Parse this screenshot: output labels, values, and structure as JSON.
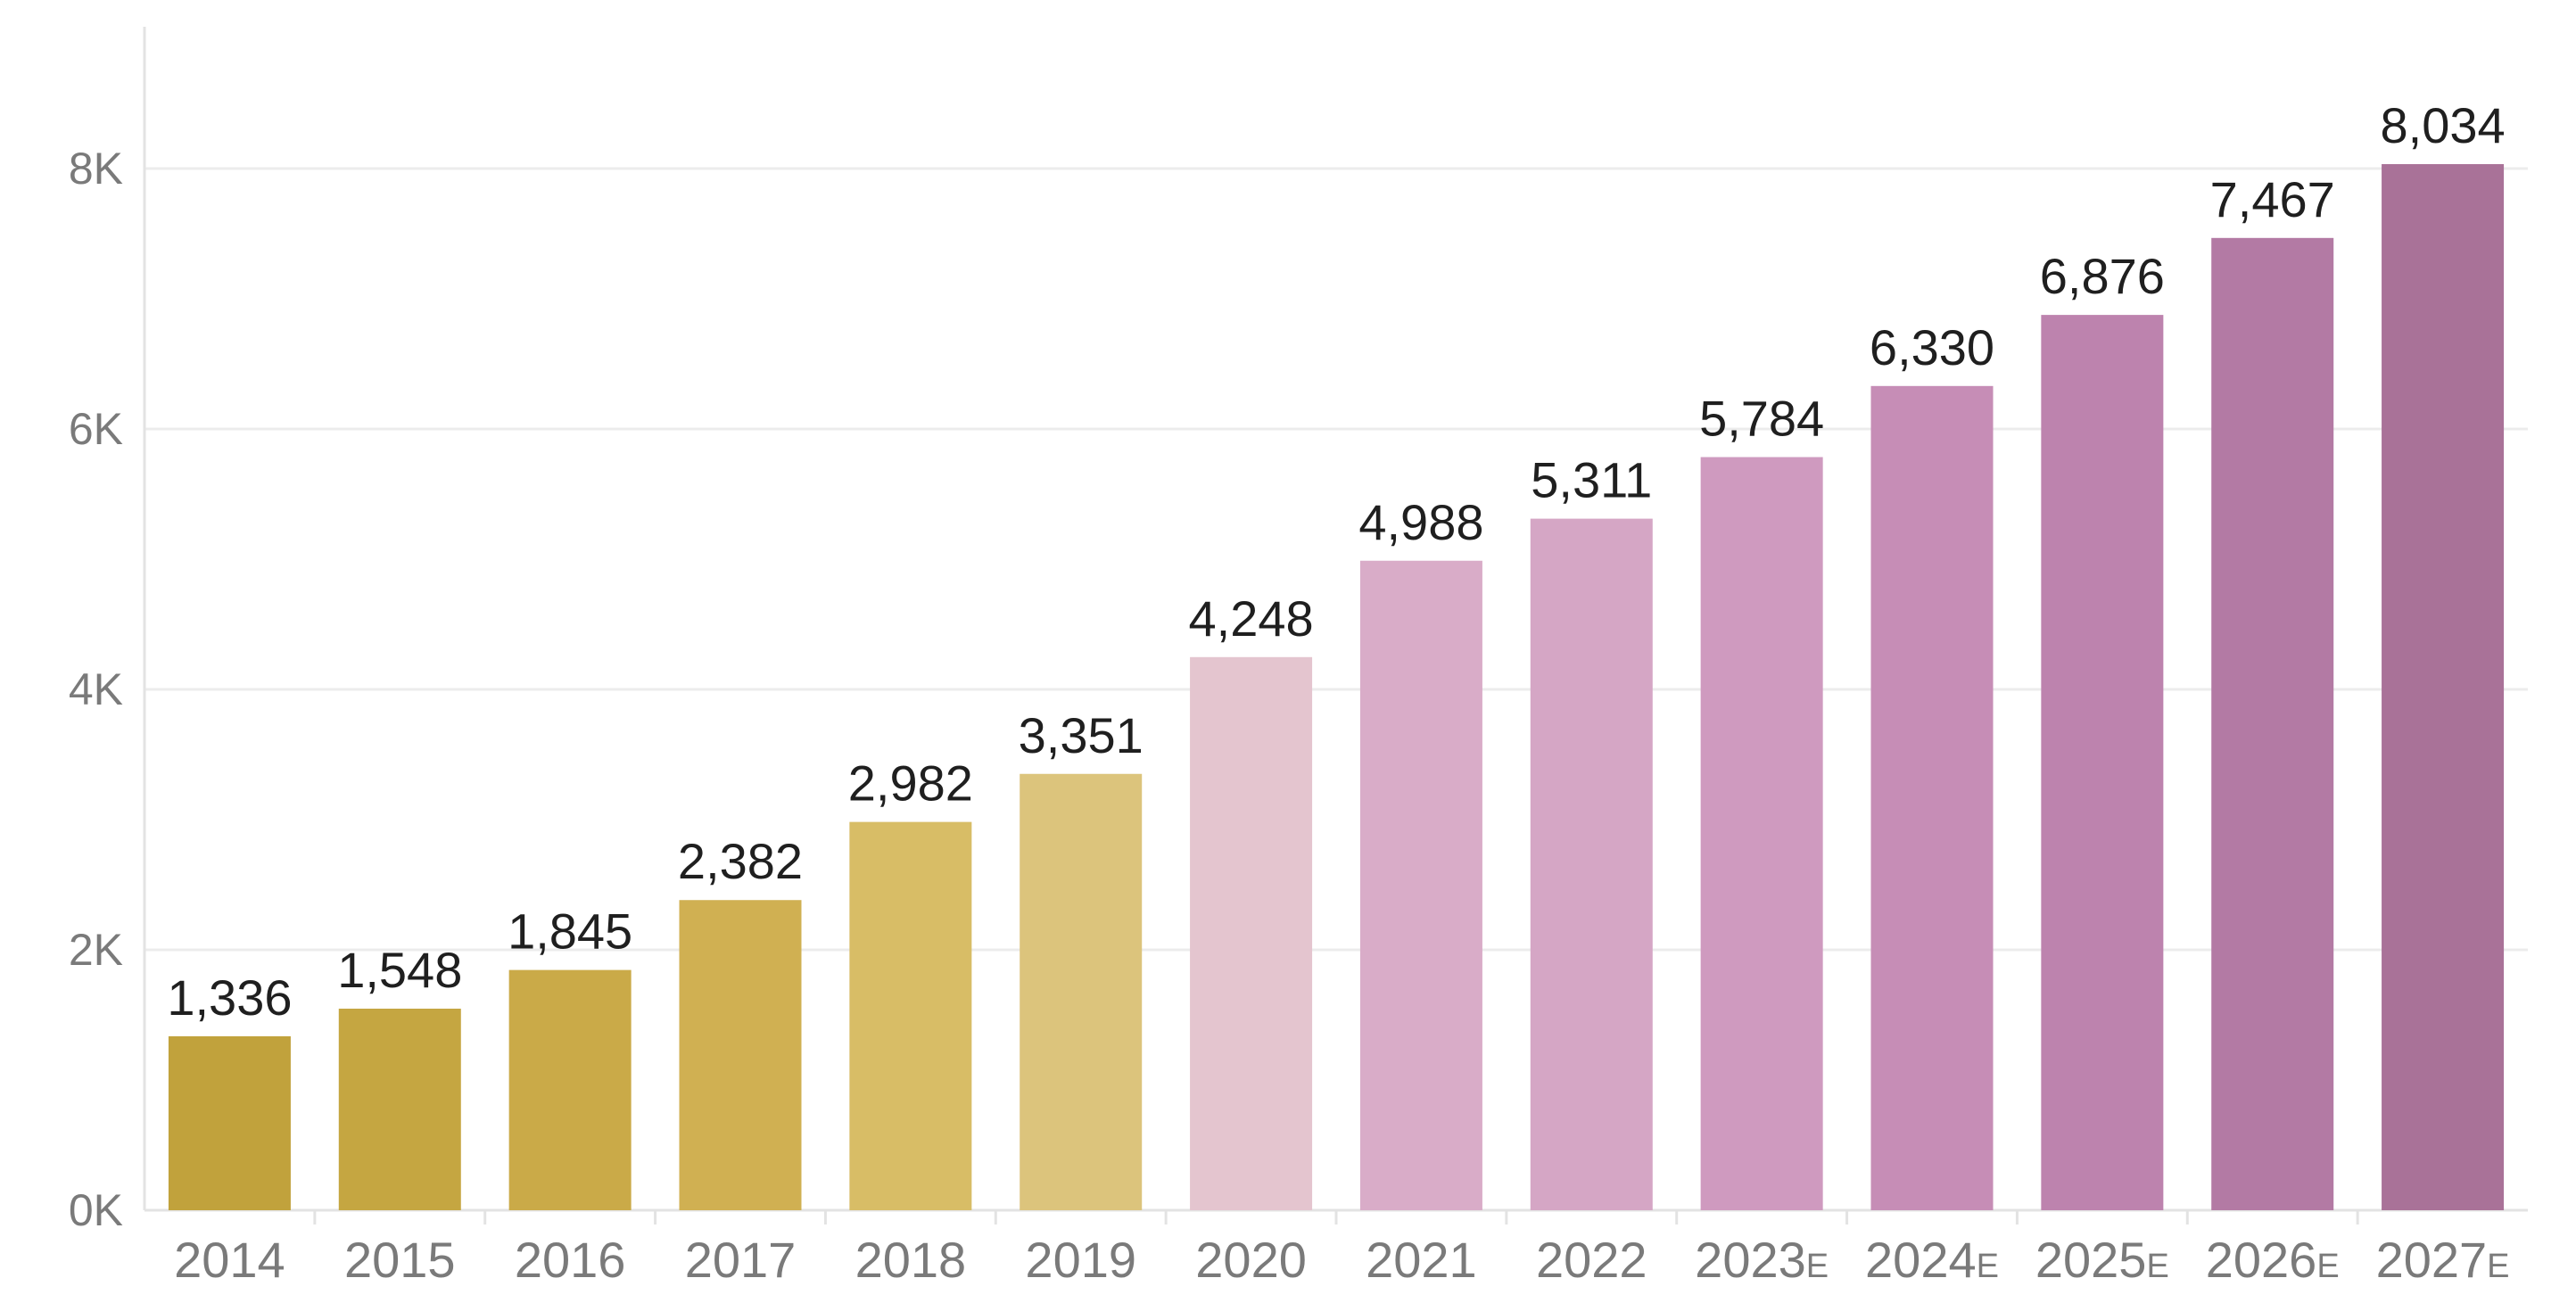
{
  "chart_data": {
    "type": "bar",
    "title": "",
    "xlabel": "",
    "ylabel": "",
    "ylim": [
      0,
      9000
    ],
    "grid": true,
    "legend": "none",
    "y_ticks": [
      {
        "value": 0,
        "label": "0K"
      },
      {
        "value": 2000,
        "label": "2K"
      },
      {
        "value": 4000,
        "label": "4K"
      },
      {
        "value": 6000,
        "label": "6K"
      },
      {
        "value": 8000,
        "label": "8K"
      }
    ],
    "categories": [
      {
        "label": "2014",
        "suffix": ""
      },
      {
        "label": "2015",
        "suffix": ""
      },
      {
        "label": "2016",
        "suffix": ""
      },
      {
        "label": "2017",
        "suffix": ""
      },
      {
        "label": "2018",
        "suffix": ""
      },
      {
        "label": "2019",
        "suffix": ""
      },
      {
        "label": "2020",
        "suffix": ""
      },
      {
        "label": "2021",
        "suffix": ""
      },
      {
        "label": "2022",
        "suffix": ""
      },
      {
        "label": "2023",
        "suffix": "E"
      },
      {
        "label": "2024",
        "suffix": "E"
      },
      {
        "label": "2025",
        "suffix": "E"
      },
      {
        "label": "2026",
        "suffix": "E"
      },
      {
        "label": "2027",
        "suffix": "E"
      }
    ],
    "values": [
      1336,
      1548,
      1845,
      2382,
      2982,
      3351,
      4248,
      4988,
      5311,
      5784,
      6330,
      6876,
      7467,
      8034
    ],
    "value_labels": [
      "1,336",
      "1,548",
      "1,845",
      "2,382",
      "2,982",
      "3,351",
      "4,248",
      "4,988",
      "5,311",
      "5,784",
      "6,330",
      "6,876",
      "7,467",
      "8,034"
    ],
    "colors": [
      "#c1a23c",
      "#c5a641",
      "#caaa48",
      "#d0b052",
      "#d8bd66",
      "#dcc47c",
      "#e4c5cf",
      "#d9acc8",
      "#d5a6c5",
      "#cf9abf",
      "#c68db6",
      "#bd83ae",
      "#b37aa4",
      "#a97298"
    ]
  }
}
